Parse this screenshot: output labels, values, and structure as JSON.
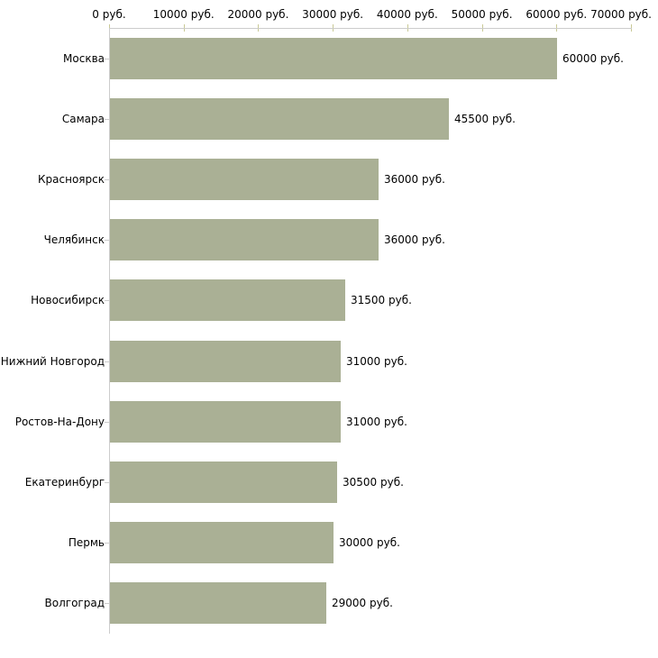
{
  "chart_data": {
    "type": "bar",
    "orientation": "horizontal",
    "categories": [
      "Москва",
      "Самара",
      "Красноярск",
      "Челябинск",
      "Новосибирск",
      "Нижний Новгород",
      "Ростов-На-Дону",
      "Екатеринбург",
      "Пермь",
      "Волгоград"
    ],
    "values": [
      60000,
      45500,
      36000,
      36000,
      31500,
      31000,
      31000,
      30500,
      30000,
      29000
    ],
    "value_labels": [
      "60000 руб.",
      "45500 руб.",
      "36000 руб.",
      "36000 руб.",
      "31500 руб.",
      "31000 руб.",
      "31000 руб.",
      "30500 руб.",
      "30000 руб.",
      "29000 руб."
    ],
    "unit": "руб.",
    "xlim": [
      0,
      70000
    ],
    "x_ticks": [
      0,
      10000,
      20000,
      30000,
      40000,
      50000,
      60000,
      70000
    ],
    "x_tick_labels": [
      "0 руб.",
      "10000 руб.",
      "20000 руб.",
      "30000 руб.",
      "40000 руб.",
      "50000 руб.",
      "60000 руб.",
      "70000 руб."
    ],
    "axis_position": "top",
    "grid": false,
    "legend": null,
    "colors": {
      "bar": "#aab095",
      "axis_line": "#cccccc",
      "axis_tick": "#c9c996",
      "text": "#000000",
      "background": "#ffffff"
    }
  }
}
